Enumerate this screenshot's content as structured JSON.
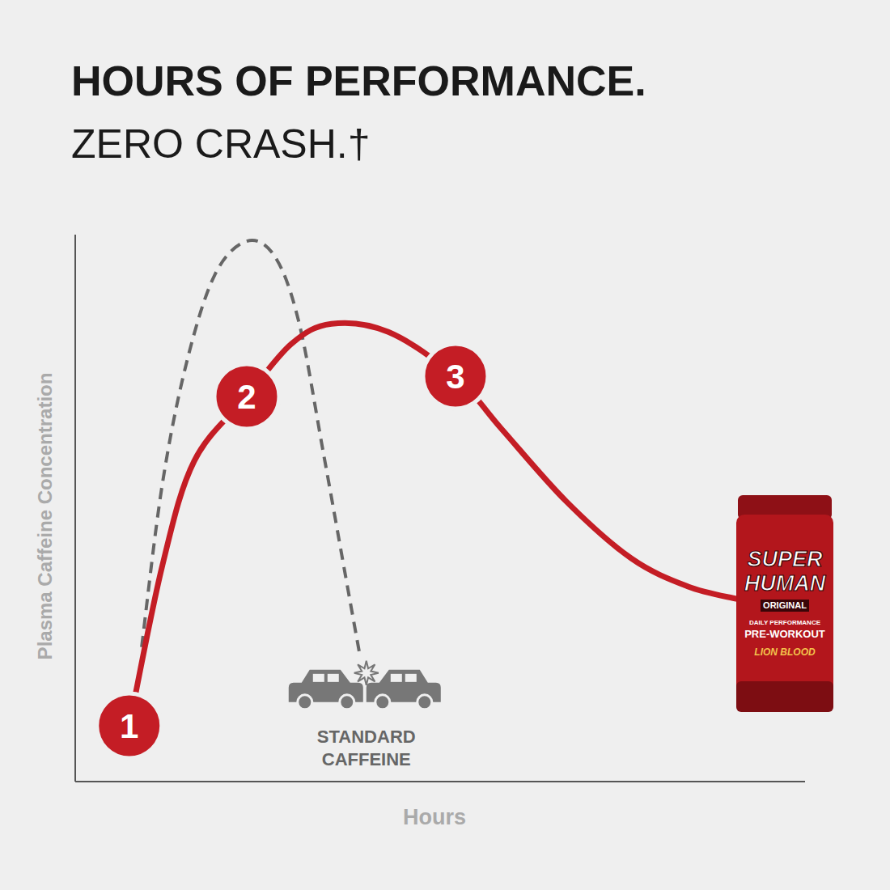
{
  "chart_data": {
    "type": "line",
    "title": "HOURS OF PERFORMANCE.",
    "subtitle": "ZERO CRASH.†",
    "x_label": "Hours",
    "y_label": "Plasma Caffeine Concentration",
    "xlim": [
      0,
      10
    ],
    "ylim": [
      0,
      100
    ],
    "tick_labels": false,
    "grid": false,
    "series": [
      {
        "color": "#c41d25",
        "line_style": "solid",
        "x": [
          0.74,
          1.19,
          1.63,
          2.35,
          2.96,
          3.51,
          4.29,
          5.21,
          5.84,
          6.73,
          7.62,
          8.39,
          9.06
        ],
        "values": [
          10.2,
          39.3,
          58.6,
          70.4,
          80.0,
          83.7,
          82.2,
          74.1,
          64.5,
          51.2,
          40.8,
          35.7,
          33.4
        ]
      },
      {
        "name": "STANDARD CAFFEINE",
        "color": "#666666",
        "line_style": "dashed",
        "x": [
          0.91,
          1.19,
          1.52,
          1.91,
          2.35,
          2.74,
          3.07,
          3.4,
          3.74,
          3.9
        ],
        "values": [
          24.6,
          54.1,
          76.3,
          92.6,
          98.8,
          95.9,
          83.7,
          60.1,
          34.9,
          23.1
        ]
      }
    ],
    "annotations": [
      {
        "text": "1",
        "x": 0.74,
        "y": 10.2
      },
      {
        "text": "2",
        "x": 2.35,
        "y": 70.4
      },
      {
        "text": "3",
        "x": 5.21,
        "y": 74.1
      }
    ],
    "product_label": [
      "SUPER",
      "HUMAN",
      "ORIGINAL",
      "DAILY PERFORMANCE",
      "PRE-WORKOUT",
      "LION BLOOD"
    ]
  }
}
